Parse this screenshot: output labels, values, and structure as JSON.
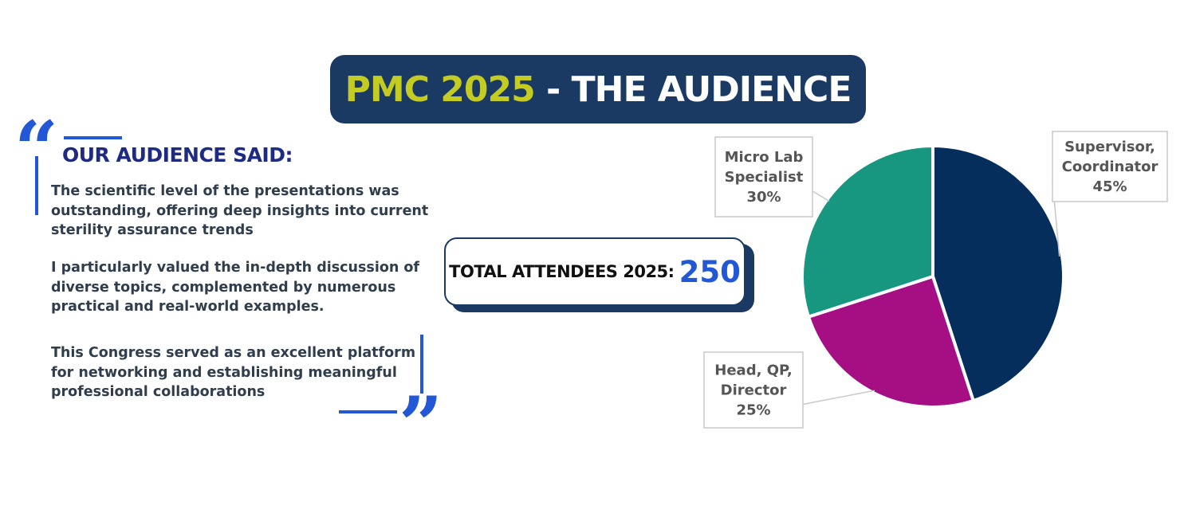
{
  "title": {
    "accent": "PMC 2025",
    "separator": " - ",
    "main": "THE AUDIENCE"
  },
  "testimonials": {
    "heading": "OUR AUDIENCE SAID:",
    "quotes": [
      "The scientific level of the presentations was outstanding, offering deep insights into current sterility assurance trends",
      "I particularly valued the in-depth discussion of diverse topics, complemented by numerous practical and real-world examples.",
      "This Congress served as an excellent platform for networking and establishing meaningful professional collaborations"
    ]
  },
  "attendees": {
    "label": "TOTAL ATTENDEES 2025:",
    "value": "250"
  },
  "colors": {
    "banner": "#1b3a63",
    "accent": "#c4cb22",
    "quote_blue": "#2258d6",
    "heading": "#1d2b82",
    "slice_supervisor": "#062e5c",
    "slice_head": "#a50f83",
    "slice_lab": "#17977f"
  },
  "chart_data": {
    "type": "pie",
    "start": "12 o'clock",
    "direction": "clockwise",
    "legend": "none",
    "slices": [
      {
        "label_lines": [
          "Supervisor,",
          "Coordinator"
        ],
        "value": 45,
        "value_label": "45%",
        "color": "#062e5c"
      },
      {
        "label_lines": [
          "Head, QP,",
          "Director"
        ],
        "value": 25,
        "value_label": "25%",
        "color": "#a50f83"
      },
      {
        "label_lines": [
          "Micro Lab",
          "Specialist"
        ],
        "value": 30,
        "value_label": "30%",
        "color": "#17977f"
      }
    ]
  }
}
